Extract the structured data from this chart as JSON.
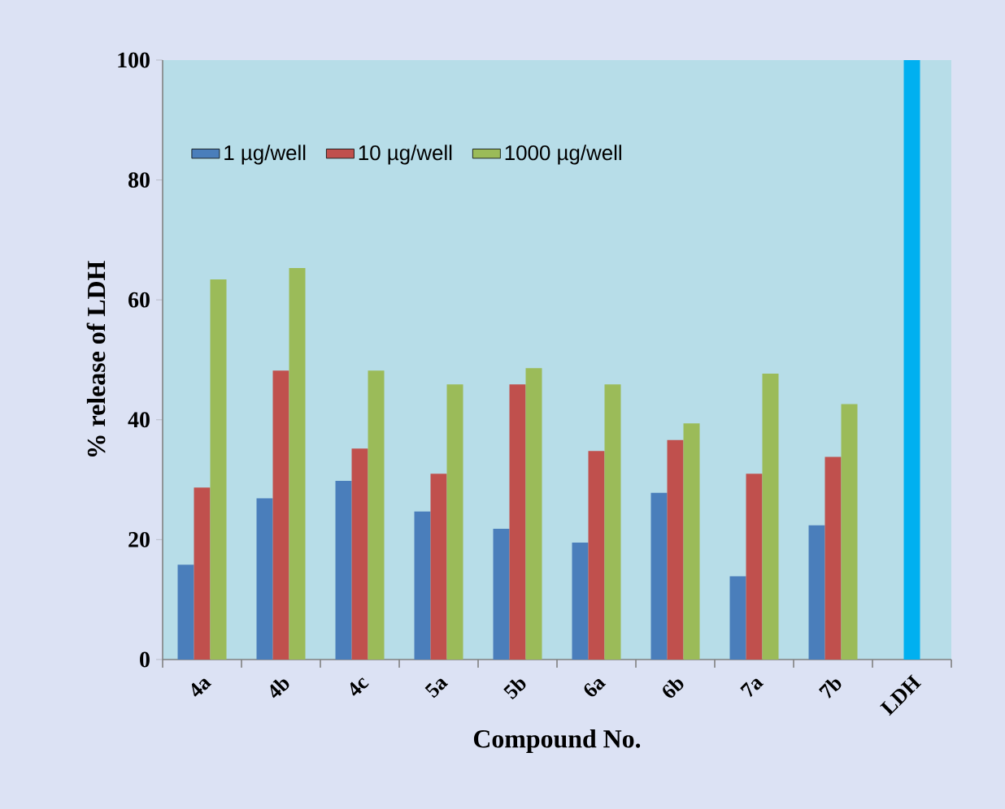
{
  "chart_data": {
    "type": "bar",
    "xlabel": "Compound No.",
    "ylabel": "% release of LDH",
    "categories": [
      "4a",
      "4b",
      "4c",
      "5a",
      "5b",
      "6a",
      "6b",
      "7a",
      "7b",
      "LDH"
    ],
    "series": [
      {
        "name": "1 µg/well",
        "color": "#4a7ebb",
        "values": [
          15.8,
          26.9,
          29.8,
          24.7,
          21.8,
          19.5,
          27.8,
          13.9,
          22.4,
          null
        ]
      },
      {
        "name": "10 µg/well",
        "color": "#c0504d",
        "values": [
          28.7,
          48.2,
          35.2,
          31.0,
          45.9,
          34.8,
          36.6,
          31.0,
          33.8,
          null
        ]
      },
      {
        "name": "1000 µg/well",
        "color": "#9bbb59",
        "values": [
          63.4,
          65.3,
          48.2,
          45.9,
          48.6,
          45.9,
          39.4,
          47.7,
          42.6,
          null
        ]
      },
      {
        "color": "#00b0f0",
        "values": [
          null,
          null,
          null,
          null,
          null,
          null,
          null,
          null,
          null,
          100
        ]
      }
    ],
    "ylim": [
      0,
      100
    ],
    "yticks": [
      0,
      20,
      40,
      60,
      80,
      100
    ],
    "legend": "top left"
  }
}
